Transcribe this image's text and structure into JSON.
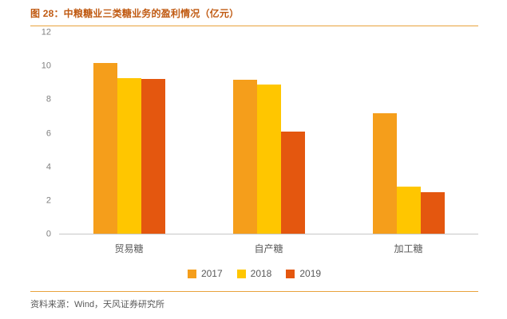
{
  "header": {
    "title": "图 28：中粮糖业三类糖业务的盈利情况（亿元）"
  },
  "footer": {
    "source": "资料来源：Wind，天风证券研究所"
  },
  "colors": {
    "title_color": "#C05A12",
    "divider_color": "#E8A33D",
    "axis_color": "#C6C6C6",
    "tick_color": "#808080",
    "text_color": "#595959",
    "bg_color": "#FFFFFF"
  },
  "chart_data": {
    "type": "bar",
    "title": "中粮糖业三类糖业务的盈利情况（亿元）",
    "categories": [
      "贸易糖",
      "自产糖",
      "加工糖"
    ],
    "series": [
      {
        "name": "2017",
        "color": "#F59E1B",
        "values": [
          10.2,
          9.2,
          7.2
        ]
      },
      {
        "name": "2018",
        "color": "#FFC600",
        "values": [
          9.3,
          8.9,
          2.8
        ]
      },
      {
        "name": "2019",
        "color": "#E4570F",
        "values": [
          9.25,
          6.1,
          2.5
        ]
      }
    ],
    "xlabel": "",
    "ylabel": "",
    "ylim": [
      0,
      12
    ],
    "yticks": [
      0,
      2,
      4,
      6,
      8,
      10,
      12
    ],
    "grid": false,
    "legend_position": "bottom"
  }
}
